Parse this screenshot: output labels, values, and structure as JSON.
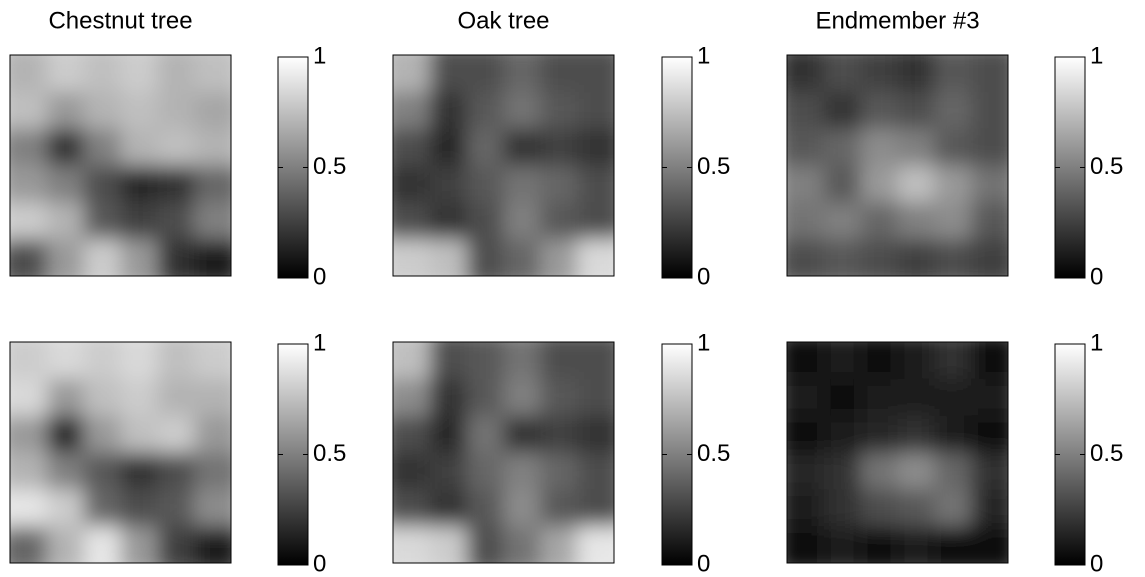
{
  "chart_data": [
    {
      "type": "heatmap",
      "title": "Chestnut tree",
      "cmap": "gray",
      "clim": [
        0,
        1
      ],
      "cticks": [
        0,
        0.5,
        1
      ],
      "z": [
        [
          0.7,
          0.8,
          0.75,
          0.8,
          0.7,
          0.75
        ],
        [
          0.75,
          0.6,
          0.7,
          0.75,
          0.7,
          0.65
        ],
        [
          0.5,
          0.2,
          0.5,
          0.7,
          0.75,
          0.7
        ],
        [
          0.6,
          0.5,
          0.3,
          0.15,
          0.2,
          0.4
        ],
        [
          0.8,
          0.7,
          0.35,
          0.25,
          0.3,
          0.5
        ],
        [
          0.3,
          0.6,
          0.8,
          0.6,
          0.2,
          0.1
        ]
      ]
    },
    {
      "type": "heatmap",
      "title": "Oak tree",
      "cmap": "gray",
      "clim": [
        0,
        1
      ],
      "cticks": [
        0,
        0.5,
        1
      ],
      "z": [
        [
          0.7,
          0.3,
          0.3,
          0.4,
          0.3,
          0.3
        ],
        [
          0.5,
          0.2,
          0.35,
          0.45,
          0.35,
          0.3
        ],
        [
          0.3,
          0.15,
          0.4,
          0.2,
          0.25,
          0.2
        ],
        [
          0.2,
          0.25,
          0.35,
          0.45,
          0.4,
          0.3
        ],
        [
          0.3,
          0.2,
          0.3,
          0.5,
          0.35,
          0.3
        ],
        [
          0.8,
          0.75,
          0.3,
          0.4,
          0.6,
          0.85
        ]
      ]
    },
    {
      "type": "heatmap",
      "title": "Endmember #3",
      "cmap": "gray",
      "clim": [
        0,
        1
      ],
      "cticks": [
        0,
        0.5,
        1
      ],
      "z": [
        [
          0.2,
          0.3,
          0.25,
          0.2,
          0.35,
          0.3
        ],
        [
          0.3,
          0.2,
          0.35,
          0.3,
          0.4,
          0.3
        ],
        [
          0.35,
          0.4,
          0.55,
          0.5,
          0.35,
          0.3
        ],
        [
          0.5,
          0.35,
          0.6,
          0.75,
          0.6,
          0.45
        ],
        [
          0.45,
          0.5,
          0.4,
          0.5,
          0.55,
          0.35
        ],
        [
          0.3,
          0.35,
          0.3,
          0.25,
          0.3,
          0.25
        ]
      ]
    },
    {
      "type": "heatmap",
      "cmap": "gray",
      "clim": [
        0,
        1
      ],
      "cticks": [
        0,
        0.5,
        1
      ],
      "z": [
        [
          0.8,
          0.85,
          0.8,
          0.85,
          0.75,
          0.8
        ],
        [
          0.85,
          0.6,
          0.75,
          0.8,
          0.7,
          0.7
        ],
        [
          0.6,
          0.15,
          0.6,
          0.75,
          0.8,
          0.6
        ],
        [
          0.7,
          0.5,
          0.35,
          0.2,
          0.3,
          0.45
        ],
        [
          0.9,
          0.8,
          0.4,
          0.3,
          0.35,
          0.55
        ],
        [
          0.4,
          0.7,
          0.9,
          0.6,
          0.25,
          0.1
        ]
      ]
    },
    {
      "type": "heatmap",
      "cmap": "gray",
      "clim": [
        0,
        1
      ],
      "cticks": [
        0,
        0.5,
        1
      ],
      "z": [
        [
          0.75,
          0.3,
          0.35,
          0.45,
          0.3,
          0.3
        ],
        [
          0.55,
          0.2,
          0.35,
          0.5,
          0.35,
          0.3
        ],
        [
          0.3,
          0.15,
          0.45,
          0.2,
          0.25,
          0.2
        ],
        [
          0.2,
          0.25,
          0.4,
          0.5,
          0.4,
          0.3
        ],
        [
          0.3,
          0.2,
          0.35,
          0.55,
          0.35,
          0.3
        ],
        [
          0.85,
          0.8,
          0.3,
          0.45,
          0.65,
          0.9
        ]
      ]
    },
    {
      "type": "heatmap",
      "cmap": "gray",
      "clim": [
        0,
        1
      ],
      "cticks": [
        0,
        0.5,
        1
      ],
      "z": [
        [
          0.05,
          0.1,
          0.05,
          0.1,
          0.2,
          0.05
        ],
        [
          0.1,
          0.05,
          0.1,
          0.1,
          0.1,
          0.1
        ],
        [
          0.05,
          0.1,
          0.15,
          0.2,
          0.1,
          0.05
        ],
        [
          0.15,
          0.2,
          0.45,
          0.55,
          0.4,
          0.2
        ],
        [
          0.1,
          0.2,
          0.3,
          0.35,
          0.45,
          0.15
        ],
        [
          0.05,
          0.1,
          0.05,
          0.1,
          0.05,
          0.05
        ]
      ]
    }
  ]
}
